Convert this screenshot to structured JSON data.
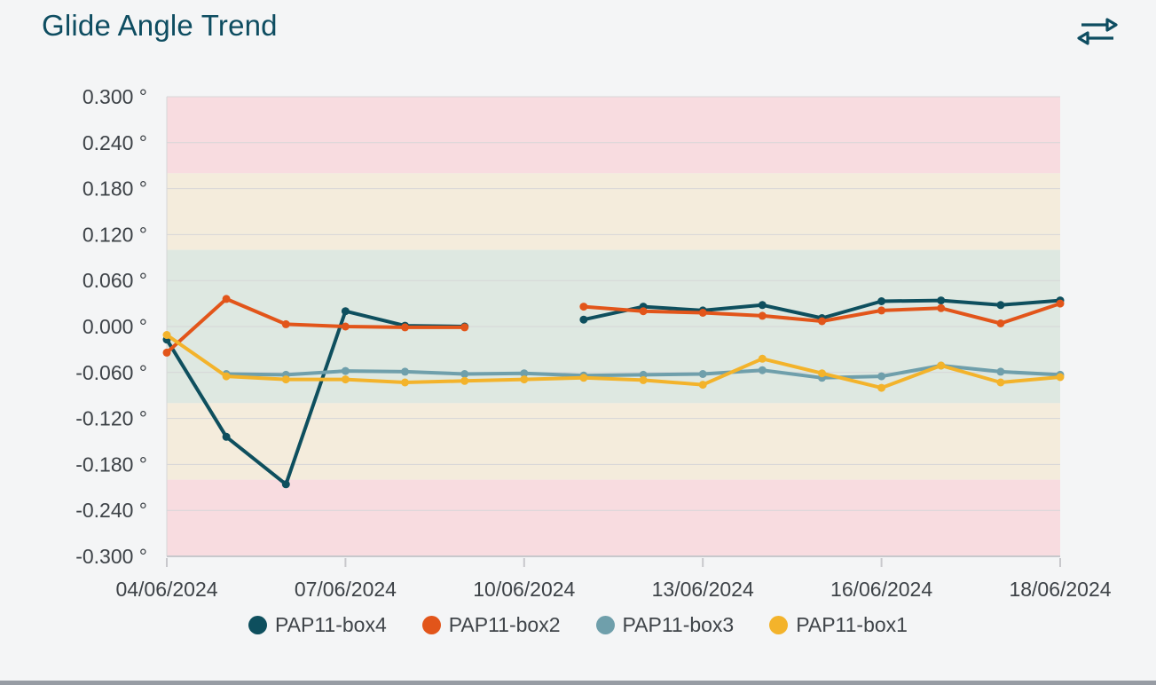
{
  "header": {
    "title": "Glide Angle Trend",
    "swap_icon": "swap-horizontal-arrows"
  },
  "colors": {
    "background": "#f4f5f6",
    "title": "#0e4d61",
    "axis_text": "#3d4247",
    "gridline": "#d6d6d8",
    "axis_line": "#c8c8cc",
    "bottom_bar": "#979ca4"
  },
  "chart_data": {
    "type": "line",
    "title": "Glide Angle Trend",
    "num_slots": 16,
    "x_tick_slots": [
      0,
      3,
      6,
      9,
      12,
      15
    ],
    "x_tick_labels": [
      "04/06/2024",
      "07/06/2024",
      "10/06/2024",
      "13/06/2024",
      "16/06/2024",
      "18/06/2024"
    ],
    "ylim": [
      -0.3,
      0.3
    ],
    "y_tick_step": 0.06,
    "y_tick_labels": [
      "0.300 °",
      "0.240 °",
      "0.180 °",
      "0.120 °",
      "0.060 °",
      "0.000 °",
      "-0.060 °",
      "-0.120 °",
      "-0.180 °",
      "-0.240 °",
      "-0.300 °"
    ],
    "grid": "horizontal",
    "legend_position": "bottom",
    "bands": [
      {
        "zone": "high-alert-upper",
        "lo": 0.2,
        "hi": 0.3,
        "color": "#f8dce0"
      },
      {
        "zone": "warning-upper",
        "lo": 0.1,
        "hi": 0.2,
        "color": "#f4ecdc"
      },
      {
        "zone": "normal",
        "lo": -0.1,
        "hi": 0.1,
        "color": "#dee8e1"
      },
      {
        "zone": "warning-lower",
        "lo": -0.2,
        "hi": -0.1,
        "color": "#f4ecdc"
      },
      {
        "zone": "high-alert-lower",
        "lo": -0.3,
        "hi": -0.2,
        "color": "#f8dce0"
      }
    ],
    "series": [
      {
        "name": "PAP11-box4",
        "color": "#0e4f5e",
        "values": [
          -0.017,
          -0.144,
          -0.206,
          0.02,
          0.001,
          0.0,
          null,
          0.009,
          0.026,
          0.021,
          0.028,
          0.011,
          0.033,
          0.034,
          0.028,
          0.034
        ]
      },
      {
        "name": "PAP11-box2",
        "color": "#e2551a",
        "values": [
          -0.034,
          0.036,
          0.003,
          0.0,
          -0.001,
          -0.001,
          null,
          0.026,
          0.02,
          0.018,
          0.014,
          0.007,
          0.021,
          0.024,
          0.004,
          0.03
        ]
      },
      {
        "name": "PAP11-box3",
        "color": "#6f9fab",
        "values": [
          null,
          -0.062,
          -0.063,
          -0.058,
          -0.059,
          -0.062,
          -0.061,
          -0.064,
          -0.063,
          -0.062,
          -0.057,
          -0.067,
          -0.065,
          -0.051,
          -0.059,
          -0.063
        ]
      },
      {
        "name": "PAP11-box1",
        "color": "#f3b32b",
        "values": [
          -0.011,
          -0.065,
          -0.069,
          -0.069,
          -0.073,
          -0.071,
          -0.069,
          -0.067,
          -0.07,
          -0.076,
          -0.042,
          -0.061,
          -0.08,
          -0.051,
          -0.073,
          -0.066
        ]
      }
    ]
  }
}
